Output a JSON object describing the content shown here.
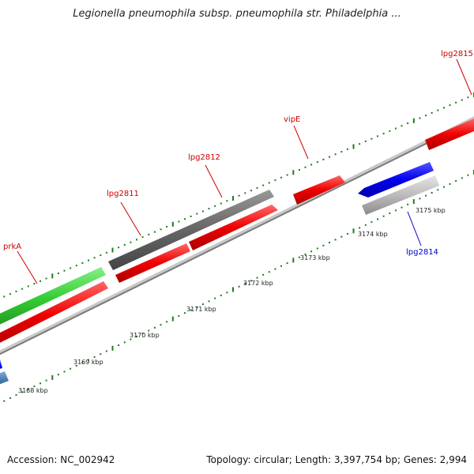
{
  "title": "Legionella pneumophila subsp. pneumophila str. Philadelphia ...",
  "footer": {
    "accession": "Accession: NC_002942",
    "summary": "Topology: circular; Length: 3,397,754 bp; Genes: 2,994"
  },
  "colors": {
    "backbone": "#8c8c8c",
    "ticks": "#1f7a1f",
    "gene_red": "#ee0000",
    "gene_green": "#33cc33",
    "gene_dark": "#666666",
    "gene_blue": "#0000ee",
    "gene_light": "#bbbbbb",
    "gene_steel": "#4477aa",
    "label_red": "#cc0000",
    "label_blue": "#0000cc"
  },
  "ticks": [
    {
      "label": "3168 kbp"
    },
    {
      "label": "3169 kbp"
    },
    {
      "label": "3170 kbp"
    },
    {
      "label": "3171 kbp"
    },
    {
      "label": "3172 kbp"
    },
    {
      "label": "3173 kbp"
    },
    {
      "label": "3174 kbp"
    },
    {
      "label": "3175 kbp"
    }
  ],
  "genes": [
    {
      "name": "prkA",
      "color": "gene_green",
      "label_color": "label_red"
    },
    {
      "name": "lpg2811",
      "color": "gene_dark",
      "label_color": "label_red"
    },
    {
      "name": "lpg2812",
      "color": "gene_red",
      "label_color": "label_red"
    },
    {
      "name": "vipE",
      "color": "gene_red",
      "label_color": "label_red"
    },
    {
      "name": "lpg2815",
      "color": "gene_red",
      "label_color": "label_red"
    },
    {
      "name": "lpg2814",
      "color": "gene_light",
      "label_color": "label_blue"
    }
  ]
}
